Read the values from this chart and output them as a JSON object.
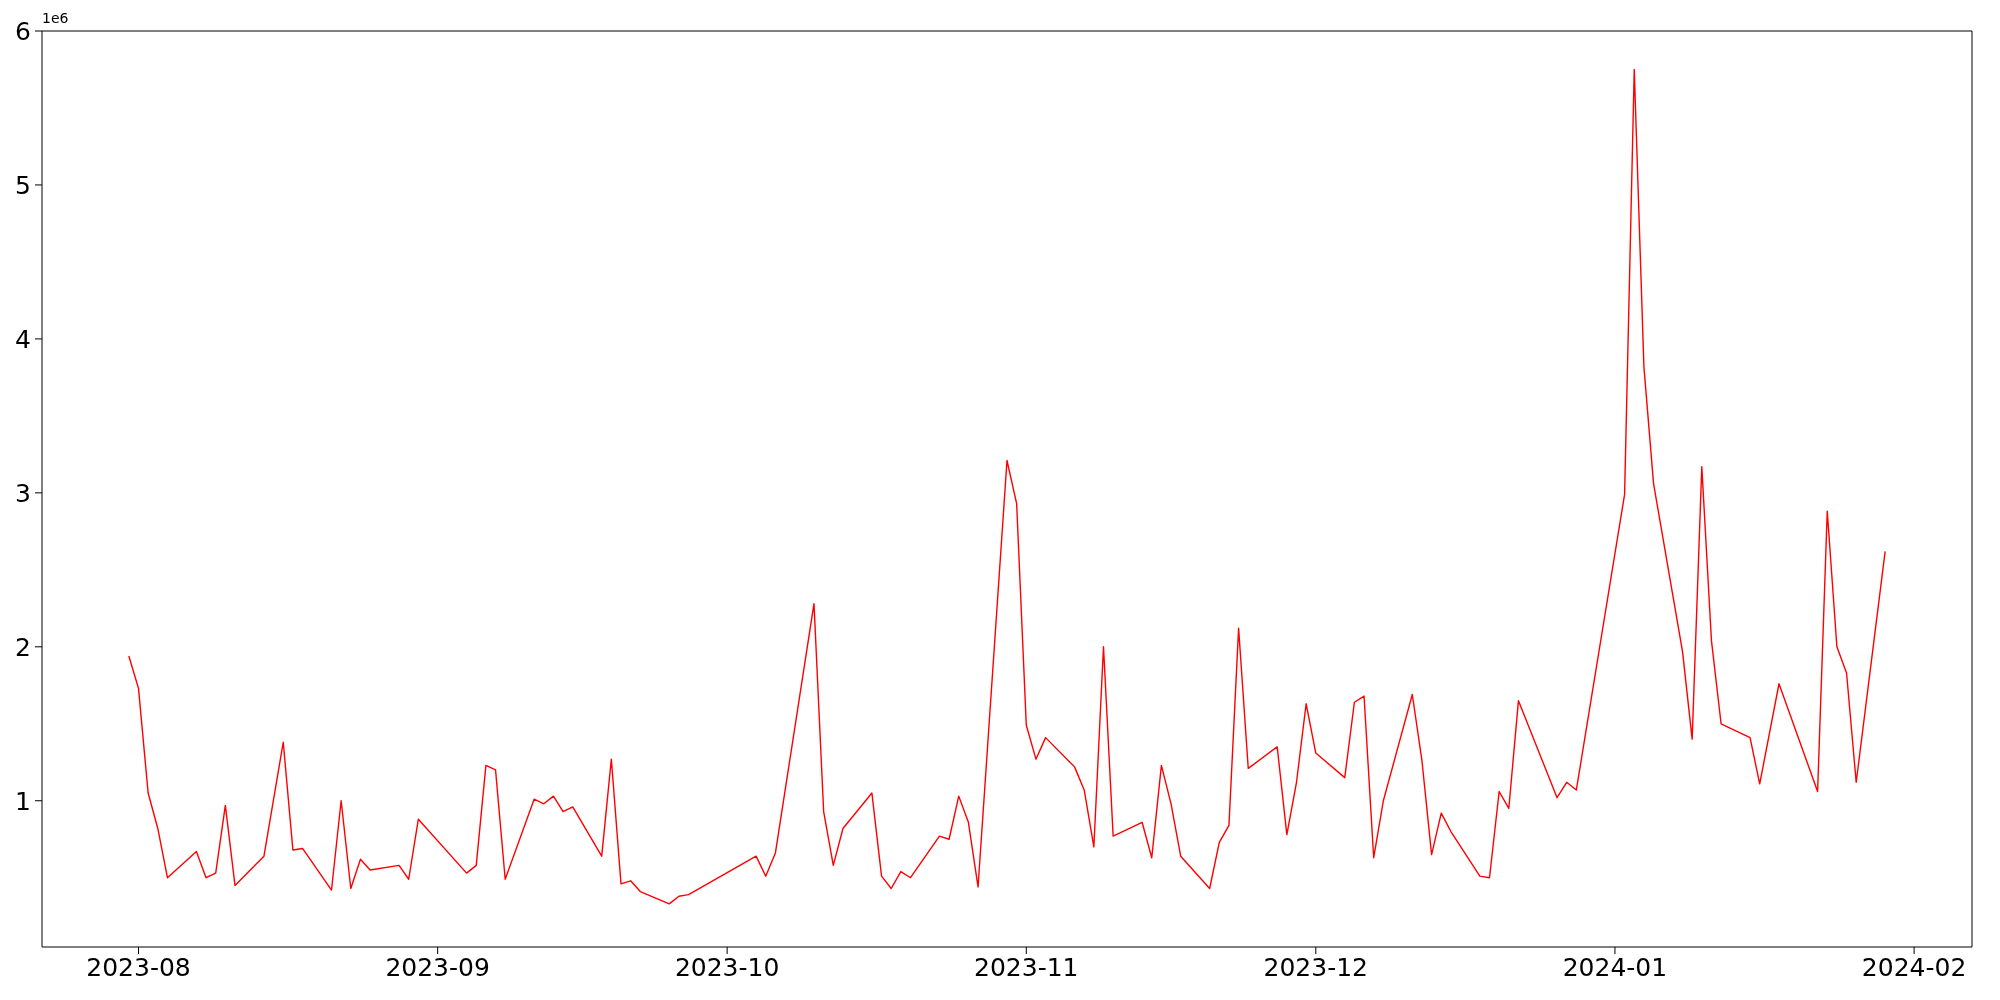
{
  "chart_data": {
    "type": "line",
    "x": [
      "2023-07-31",
      "2023-08-01",
      "2023-08-02",
      "2023-08-03",
      "2023-08-04",
      "2023-08-07",
      "2023-08-08",
      "2023-08-09",
      "2023-08-10",
      "2023-08-11",
      "2023-08-14",
      "2023-08-16",
      "2023-08-17",
      "2023-08-18",
      "2023-08-21",
      "2023-08-22",
      "2023-08-23",
      "2023-08-24",
      "2023-08-25",
      "2023-08-28",
      "2023-08-29",
      "2023-08-30",
      "2023-09-04",
      "2023-09-05",
      "2023-09-06",
      "2023-09-07",
      "2023-09-08",
      "2023-09-11",
      "2023-09-12",
      "2023-09-13",
      "2023-09-14",
      "2023-09-15",
      "2023-09-18",
      "2023-09-19",
      "2023-09-20",
      "2023-09-21",
      "2023-09-22",
      "2023-09-25",
      "2023-09-26",
      "2023-09-27",
      "2023-10-04",
      "2023-10-05",
      "2023-10-06",
      "2023-10-10",
      "2023-10-11",
      "2023-10-12",
      "2023-10-13",
      "2023-10-16",
      "2023-10-17",
      "2023-10-18",
      "2023-10-19",
      "2023-10-20",
      "2023-10-23",
      "2023-10-24",
      "2023-10-25",
      "2023-10-26",
      "2023-10-27",
      "2023-10-30",
      "2023-10-31",
      "2023-11-01",
      "2023-11-02",
      "2023-11-03",
      "2023-11-06",
      "2023-11-07",
      "2023-11-08",
      "2023-11-09",
      "2023-11-10",
      "2023-11-13",
      "2023-11-14",
      "2023-11-15",
      "2023-11-16",
      "2023-11-17",
      "2023-11-20",
      "2023-11-21",
      "2023-11-22",
      "2023-11-23",
      "2023-11-24",
      "2023-11-27",
      "2023-11-28",
      "2023-11-29",
      "2023-11-30",
      "2023-12-01",
      "2023-12-04",
      "2023-12-05",
      "2023-12-06",
      "2023-12-07",
      "2023-12-08",
      "2023-12-11",
      "2023-12-12",
      "2023-12-13",
      "2023-12-14",
      "2023-12-15",
      "2023-12-18",
      "2023-12-19",
      "2023-12-20",
      "2023-12-21",
      "2023-12-22",
      "2023-12-26",
      "2023-12-27",
      "2023-12-28",
      "2024-01-02",
      "2024-01-03",
      "2024-01-04",
      "2024-01-05",
      "2024-01-08",
      "2024-01-09",
      "2024-01-10",
      "2024-01-11",
      "2024-01-12",
      "2024-01-15",
      "2024-01-16",
      "2024-01-18",
      "2024-01-22",
      "2024-01-23",
      "2024-01-24",
      "2024-01-25",
      "2024-01-26",
      "2024-01-29"
    ],
    "series": [
      {
        "color": "#ff0000",
        "values": [
          1.94,
          1.73,
          1.05,
          0.82,
          0.5,
          0.67,
          0.5,
          0.53,
          0.97,
          0.45,
          0.64,
          1.38,
          0.68,
          0.69,
          0.42,
          1.0,
          0.43,
          0.62,
          0.55,
          0.58,
          0.49,
          0.88,
          0.53,
          0.58,
          1.23,
          1.2,
          0.49,
          1.01,
          0.98,
          1.03,
          0.93,
          0.96,
          0.64,
          1.27,
          0.46,
          0.48,
          0.41,
          0.33,
          0.38,
          0.39,
          0.64,
          0.51,
          0.66,
          2.28,
          0.93,
          0.58,
          0.82,
          1.05,
          0.51,
          0.43,
          0.54,
          0.5,
          0.77,
          0.75,
          1.03,
          0.86,
          0.44,
          3.21,
          2.93,
          1.49,
          1.27,
          1.41,
          1.22,
          1.07,
          0.7,
          2.0,
          0.77,
          0.86,
          0.63,
          1.23,
          0.98,
          0.64,
          0.43,
          0.73,
          0.84,
          2.12,
          1.21,
          1.35,
          0.78,
          1.12,
          1.63,
          1.31,
          1.15,
          1.64,
          1.68,
          0.63,
          1.0,
          1.69,
          1.26,
          0.65,
          0.92,
          0.8,
          0.51,
          0.5,
          1.06,
          0.95,
          1.65,
          1.02,
          1.12,
          1.07,
          2.99,
          5.75,
          3.82,
          3.06,
          1.97,
          1.4,
          3.17,
          2.04,
          1.5,
          1.41,
          1.11,
          1.76,
          1.06,
          2.88,
          2.0,
          1.83,
          1.12,
          2.62
        ]
      }
    ],
    "xlim": [
      "2023-07-22",
      "2024-02-07"
    ],
    "xticks": [
      "2023-08",
      "2023-09",
      "2023-10",
      "2023-11",
      "2023-12",
      "2024-01",
      "2024-02"
    ],
    "ylim": [
      0.05,
      6
    ],
    "yticks": [
      1,
      2,
      3,
      4,
      5,
      6
    ],
    "annotations": [
      "1e6"
    ],
    "grid": false,
    "legend": false
  }
}
